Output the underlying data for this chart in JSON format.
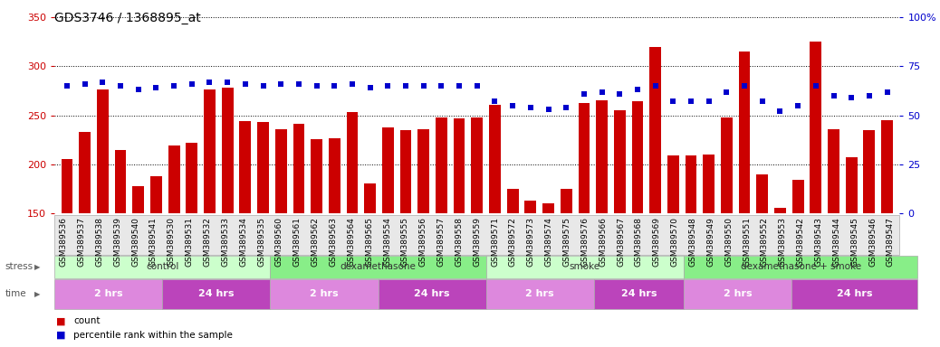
{
  "title": "GDS3746 / 1368895_at",
  "samples": [
    "GSM389536",
    "GSM389537",
    "GSM389538",
    "GSM389539",
    "GSM389540",
    "GSM389541",
    "GSM389530",
    "GSM389531",
    "GSM389532",
    "GSM389533",
    "GSM389534",
    "GSM389535",
    "GSM389560",
    "GSM389561",
    "GSM389562",
    "GSM389563",
    "GSM389564",
    "GSM389565",
    "GSM389554",
    "GSM389555",
    "GSM389556",
    "GSM389557",
    "GSM389558",
    "GSM389559",
    "GSM389571",
    "GSM389572",
    "GSM389573",
    "GSM389574",
    "GSM389575",
    "GSM389576",
    "GSM389566",
    "GSM389567",
    "GSM389568",
    "GSM389569",
    "GSM389570",
    "GSM389548",
    "GSM389549",
    "GSM389550",
    "GSM389551",
    "GSM389552",
    "GSM389553",
    "GSM389542",
    "GSM389543",
    "GSM389544",
    "GSM389545",
    "GSM389546",
    "GSM389547"
  ],
  "counts": [
    205,
    233,
    276,
    215,
    178,
    188,
    219,
    222,
    276,
    278,
    244,
    243,
    236,
    241,
    226,
    227,
    253,
    181,
    238,
    235,
    236,
    248,
    247,
    248,
    261,
    175,
    163,
    160,
    175,
    263,
    265,
    255,
    264,
    320,
    209,
    209,
    210,
    248,
    315,
    190,
    156,
    184,
    325,
    236,
    207,
    235,
    245
  ],
  "percentile_ranks": [
    65,
    66,
    67,
    65,
    63,
    64,
    65,
    66,
    67,
    67,
    66,
    65,
    66,
    66,
    65,
    65,
    66,
    64,
    65,
    65,
    65,
    65,
    65,
    65,
    57,
    55,
    54,
    53,
    54,
    61,
    62,
    61,
    63,
    65,
    57,
    57,
    57,
    62,
    65,
    57,
    52,
    55,
    65,
    60,
    59,
    60,
    62
  ],
  "ylim_left": [
    150,
    350
  ],
  "ylim_right": [
    0,
    100
  ],
  "yticks_left": [
    150,
    200,
    250,
    300,
    350
  ],
  "yticks_right": [
    0,
    25,
    50,
    75,
    100
  ],
  "bar_color": "#cc0000",
  "dot_color": "#0000cc",
  "groups": [
    {
      "label": "control",
      "start": 0,
      "end": 12,
      "color": "#ccffcc"
    },
    {
      "label": "dexamethasone",
      "start": 12,
      "end": 24,
      "color": "#88ee88"
    },
    {
      "label": "smoke",
      "start": 24,
      "end": 35,
      "color": "#ccffcc"
    },
    {
      "label": "dexamethasone + smoke",
      "start": 35,
      "end": 48,
      "color": "#88ee88"
    }
  ],
  "time_groups": [
    {
      "label": "2 hrs",
      "start": 0,
      "end": 6,
      "color": "#dd88dd"
    },
    {
      "label": "24 hrs",
      "start": 6,
      "end": 12,
      "color": "#bb44bb"
    },
    {
      "label": "2 hrs",
      "start": 12,
      "end": 18,
      "color": "#dd88dd"
    },
    {
      "label": "24 hrs",
      "start": 18,
      "end": 24,
      "color": "#bb44bb"
    },
    {
      "label": "2 hrs",
      "start": 24,
      "end": 30,
      "color": "#dd88dd"
    },
    {
      "label": "24 hrs",
      "start": 30,
      "end": 35,
      "color": "#bb44bb"
    },
    {
      "label": "2 hrs",
      "start": 35,
      "end": 41,
      "color": "#dd88dd"
    },
    {
      "label": "24 hrs",
      "start": 41,
      "end": 48,
      "color": "#bb44bb"
    }
  ],
  "background_color": "#ffffff",
  "title_fontsize": 10,
  "label_fontsize": 6.5,
  "tick_fontsize": 8
}
